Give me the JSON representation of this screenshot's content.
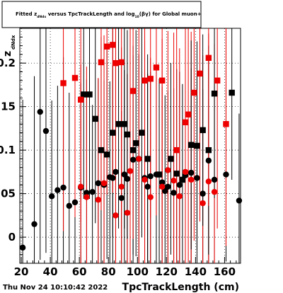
{
  "chart_data": {
    "type": "scatter",
    "title": {
      "p1": "Fitted  z",
      "s1": "dNdx",
      "p2": "  versus TpcTrackLength and log",
      "s2": "10",
      "p3": "(βγ) for Global muon+"
    },
    "xlabel": "TpcTrackLength (cm)",
    "ylabel": {
      "main": "z",
      "sub": "dNdx"
    },
    "xlim": [
      19,
      171
    ],
    "ylim": [
      -0.03,
      0.24
    ],
    "xticks": [
      20,
      40,
      60,
      80,
      100,
      120,
      140,
      160
    ],
    "yticks": [
      0,
      0.05,
      0.1,
      0.15,
      0.2
    ],
    "ytick_labels": [
      "0",
      "0.05",
      "0.1",
      "0.15",
      "0.2"
    ],
    "grid": true,
    "date": "Thu Nov 24 10:10:42 2022",
    "series": [
      {
        "marker": "circle",
        "color": "#000000",
        "points": [
          [
            21,
            -0.012,
            0.17
          ],
          [
            29,
            0.015,
            0.17
          ],
          [
            33,
            0.144,
            0.17
          ],
          [
            37,
            0.122,
            0.14
          ],
          [
            41,
            0.047,
            0.11
          ],
          [
            45,
            0.054,
            0.12
          ],
          [
            49,
            0.057,
            0.15
          ],
          [
            53,
            0.036,
            0.13
          ],
          [
            57,
            0.04,
            0.13
          ],
          [
            61,
            0.057,
            0.12
          ],
          [
            65,
            0.051,
            0.13
          ],
          [
            69,
            0.052,
            0.1
          ],
          [
            73,
            0.062,
            0.12
          ],
          [
            77,
            0.06,
            0.12
          ],
          [
            81,
            0.069,
            0.11
          ],
          [
            83,
            0.068,
            0.13
          ],
          [
            85,
            0.075,
            0.12
          ],
          [
            89,
            0.045,
            0.1
          ],
          [
            91,
            0.072,
            0.12
          ],
          [
            93,
            0.067,
            0.12
          ],
          [
            97,
            0.089,
            0.12
          ],
          [
            101,
            0.09,
            0.12
          ],
          [
            105,
            0.068,
            0.12
          ],
          [
            107,
            0.058,
            0.13
          ],
          [
            109,
            0.07,
            0.12
          ],
          [
            113,
            0.072,
            0.12
          ],
          [
            117,
            0.063,
            0.11
          ],
          [
            119,
            0.053,
            0.11
          ],
          [
            121,
            0.058,
            0.11
          ],
          [
            125,
            0.051,
            0.12
          ],
          [
            129,
            0.06,
            0.13
          ],
          [
            133,
            0.071,
            0.11
          ],
          [
            137,
            0.074,
            0.12
          ],
          [
            141,
            0.068,
            0.12
          ],
          [
            145,
            0.05,
            0.12
          ],
          [
            149,
            0.088,
            0.12
          ],
          [
            153,
            0.066,
            0.11
          ],
          [
            161,
            0.072,
            0.1
          ],
          [
            170,
            0.042,
            0.1
          ]
        ]
      },
      {
        "marker": "circle",
        "color": "#ee0000",
        "points": [
          [
            61,
            0.058,
            0.14
          ],
          [
            65,
            0.046,
            0.15
          ],
          [
            73,
            0.043,
            0.14
          ],
          [
            77,
            0.062,
            0.17
          ],
          [
            85,
            0.025,
            0.18
          ],
          [
            89,
            0.058,
            0.16
          ],
          [
            93,
            0.028,
            0.16
          ],
          [
            95,
            0.076,
            0.17
          ],
          [
            101,
            0.09,
            0.17
          ],
          [
            105,
            0.066,
            0.16
          ],
          [
            109,
            0.046,
            0.16
          ],
          [
            117,
            0.058,
            0.17
          ],
          [
            121,
            0.077,
            0.16
          ],
          [
            125,
            0.065,
            0.17
          ],
          [
            129,
            0.047,
            0.17
          ],
          [
            133,
            0.075,
            0.16
          ],
          [
            137,
            0.066,
            0.17
          ],
          [
            145,
            0.039,
            0.17
          ],
          [
            149,
            0.064,
            0.17
          ],
          [
            153,
            0.052,
            0.17
          ],
          [
            161,
            0.13,
            0.14
          ]
        ]
      },
      {
        "marker": "square",
        "color": "#000000",
        "points": [
          [
            63,
            0.164,
            0.12
          ],
          [
            67,
            0.164,
            0.12
          ],
          [
            71,
            0.136,
            0.12
          ],
          [
            75,
            0.1,
            0.13
          ],
          [
            79,
            0.095,
            0.12
          ],
          [
            83,
            0.12,
            0.12
          ],
          [
            87,
            0.13,
            0.12
          ],
          [
            91,
            0.13,
            0.12
          ],
          [
            93,
            0.118,
            0.12
          ],
          [
            97,
            0.1,
            0.12
          ],
          [
            99,
            0.108,
            0.13
          ],
          [
            103,
            0.12,
            0.12
          ],
          [
            107,
            0.09,
            0.12
          ],
          [
            115,
            0.072,
            0.11
          ],
          [
            123,
            0.09,
            0.11
          ],
          [
            127,
            0.073,
            0.12
          ],
          [
            131,
            0.066,
            0.11
          ],
          [
            137,
            0.106,
            0.12
          ],
          [
            141,
            0.105,
            0.12
          ],
          [
            145,
            0.123,
            0.11
          ],
          [
            149,
            0.1,
            0.12
          ],
          [
            153,
            0.165,
            0.12
          ],
          [
            165,
            0.166,
            0.1
          ]
        ]
      },
      {
        "marker": "square",
        "color": "#ee0000",
        "points": [
          [
            49,
            0.177,
            0.17
          ],
          [
            57,
            0.183,
            0.16
          ],
          [
            61,
            0.158,
            0.14
          ],
          [
            75,
            0.201,
            0.17
          ],
          [
            79,
            0.219,
            0.17
          ],
          [
            83,
            0.221,
            0.17
          ],
          [
            85,
            0.2,
            0.17
          ],
          [
            89,
            0.201,
            0.17
          ],
          [
            97,
            0.168,
            0.17
          ],
          [
            105,
            0.18,
            0.16
          ],
          [
            109,
            0.182,
            0.16
          ],
          [
            113,
            0.195,
            0.17
          ],
          [
            117,
            0.18,
            0.16
          ],
          [
            127,
            0.1,
            0.16
          ],
          [
            133,
            0.132,
            0.17
          ],
          [
            135,
            0.141,
            0.17
          ],
          [
            139,
            0.166,
            0.17
          ],
          [
            143,
            0.188,
            0.17
          ],
          [
            149,
            0.206,
            0.17
          ],
          [
            155,
            0.18,
            0.17
          ],
          [
            161,
            0.13,
            0.14
          ]
        ]
      }
    ]
  }
}
